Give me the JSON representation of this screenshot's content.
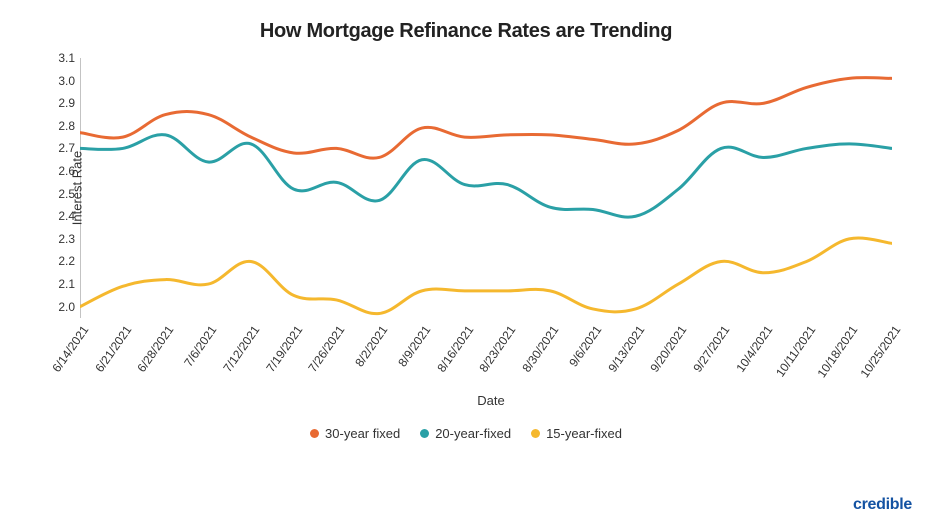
{
  "chart": {
    "type": "line",
    "title": "How Mortgage Refinance Rates are Trending",
    "title_fontsize": 20,
    "title_weight": 700,
    "xlabel": "Date",
    "ylabel": "Interest Rate",
    "label_fontsize": 13,
    "tick_fontsize": 12,
    "background_color": "#ffffff",
    "line_width": 3,
    "ylim": [
      1.95,
      3.1
    ],
    "yticks": [
      2.0,
      2.1,
      2.2,
      2.3,
      2.4,
      2.5,
      2.6,
      2.7,
      2.8,
      2.9,
      3.0,
      3.1
    ],
    "ytick_labels": [
      "2.0",
      "2.1",
      "2.2",
      "2.3",
      "2.4",
      "2.5",
      "2.6",
      "2.7",
      "2.8",
      "2.9",
      "3.0",
      "3.1"
    ],
    "x_categories": [
      "6/14/2021",
      "6/21/2021",
      "6/28/2021",
      "7/6/2021",
      "7/12/2021",
      "7/19/2021",
      "7/26/2021",
      "8/2/2021",
      "8/9/2021",
      "8/16/2021",
      "8/23/2021",
      "8/30/2021",
      "9/6/2021",
      "9/13/2021",
      "9/20/2021",
      "9/27/2021",
      "10/4/2021",
      "10/11/2021",
      "10/18/2021",
      "10/25/2021"
    ],
    "x_tick_rotation": -55,
    "series": [
      {
        "name": "30-year fixed",
        "color": "#e86a33",
        "values": [
          2.77,
          2.75,
          2.85,
          2.85,
          2.75,
          2.68,
          2.7,
          2.66,
          2.79,
          2.75,
          2.76,
          2.76,
          2.74,
          2.72,
          2.78,
          2.9,
          2.9,
          2.97,
          3.01,
          3.01
        ]
      },
      {
        "name": "20-year-fixed",
        "color": "#2aa0a6",
        "values": [
          2.7,
          2.7,
          2.76,
          2.64,
          2.72,
          2.52,
          2.55,
          2.47,
          2.65,
          2.54,
          2.54,
          2.44,
          2.43,
          2.4,
          2.52,
          2.7,
          2.66,
          2.7,
          2.72,
          2.7
        ]
      },
      {
        "name": "15-year-fixed",
        "color": "#f5b82e",
        "values": [
          2.0,
          2.09,
          2.12,
          2.1,
          2.2,
          2.05,
          2.03,
          1.97,
          2.07,
          2.07,
          2.07,
          2.07,
          1.99,
          1.99,
          2.1,
          2.2,
          2.15,
          2.2,
          2.3,
          2.28
        ]
      }
    ],
    "legend_position": "bottom",
    "legend_dot_radius": 4.5
  },
  "brand": "credible"
}
